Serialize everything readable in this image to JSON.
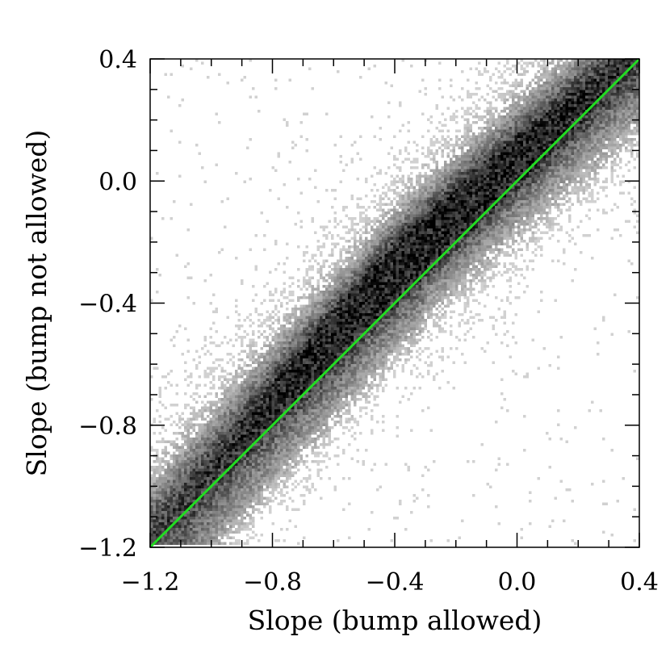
{
  "chart_data": {
    "type": "heatmap",
    "title": "",
    "xlabel": "Slope (bump allowed)",
    "ylabel": "Slope (bump not allowed)",
    "xlim": [
      -1.2,
      0.4
    ],
    "ylim": [
      -1.2,
      0.4
    ],
    "xticks": [
      -1.2,
      -0.8,
      -0.4,
      0.0,
      0.4
    ],
    "yticks": [
      -1.2,
      -0.8,
      -0.4,
      0.0,
      0.4
    ],
    "xtick_labels": [
      "−1.2",
      "−0.8",
      "−0.4",
      "0.0",
      "0.4"
    ],
    "ytick_labels": [
      "−1.2",
      "−0.8",
      "−0.4",
      "0.0",
      "0.4"
    ],
    "grid": false,
    "density": {
      "description_free": true,
      "ridge": [
        {
          "x": -1.2,
          "y": -1.17
        },
        {
          "x": -0.8,
          "y": -0.72
        },
        {
          "x": -0.4,
          "y": -0.29
        },
        {
          "x": 0.0,
          "y": 0.07
        },
        {
          "x": 0.4,
          "y": 0.42
        }
      ],
      "peak": {
        "x": -0.3,
        "y": -0.22
      },
      "colormap": "grayscale-inverted"
    },
    "reference_line": {
      "x": [
        -1.2,
        0.4
      ],
      "y": [
        -1.2,
        0.4
      ],
      "color": "#22dd22"
    },
    "colors": {
      "line": "#22dd22",
      "density_max": "#000000",
      "density_min": "#d0d0d0"
    }
  }
}
